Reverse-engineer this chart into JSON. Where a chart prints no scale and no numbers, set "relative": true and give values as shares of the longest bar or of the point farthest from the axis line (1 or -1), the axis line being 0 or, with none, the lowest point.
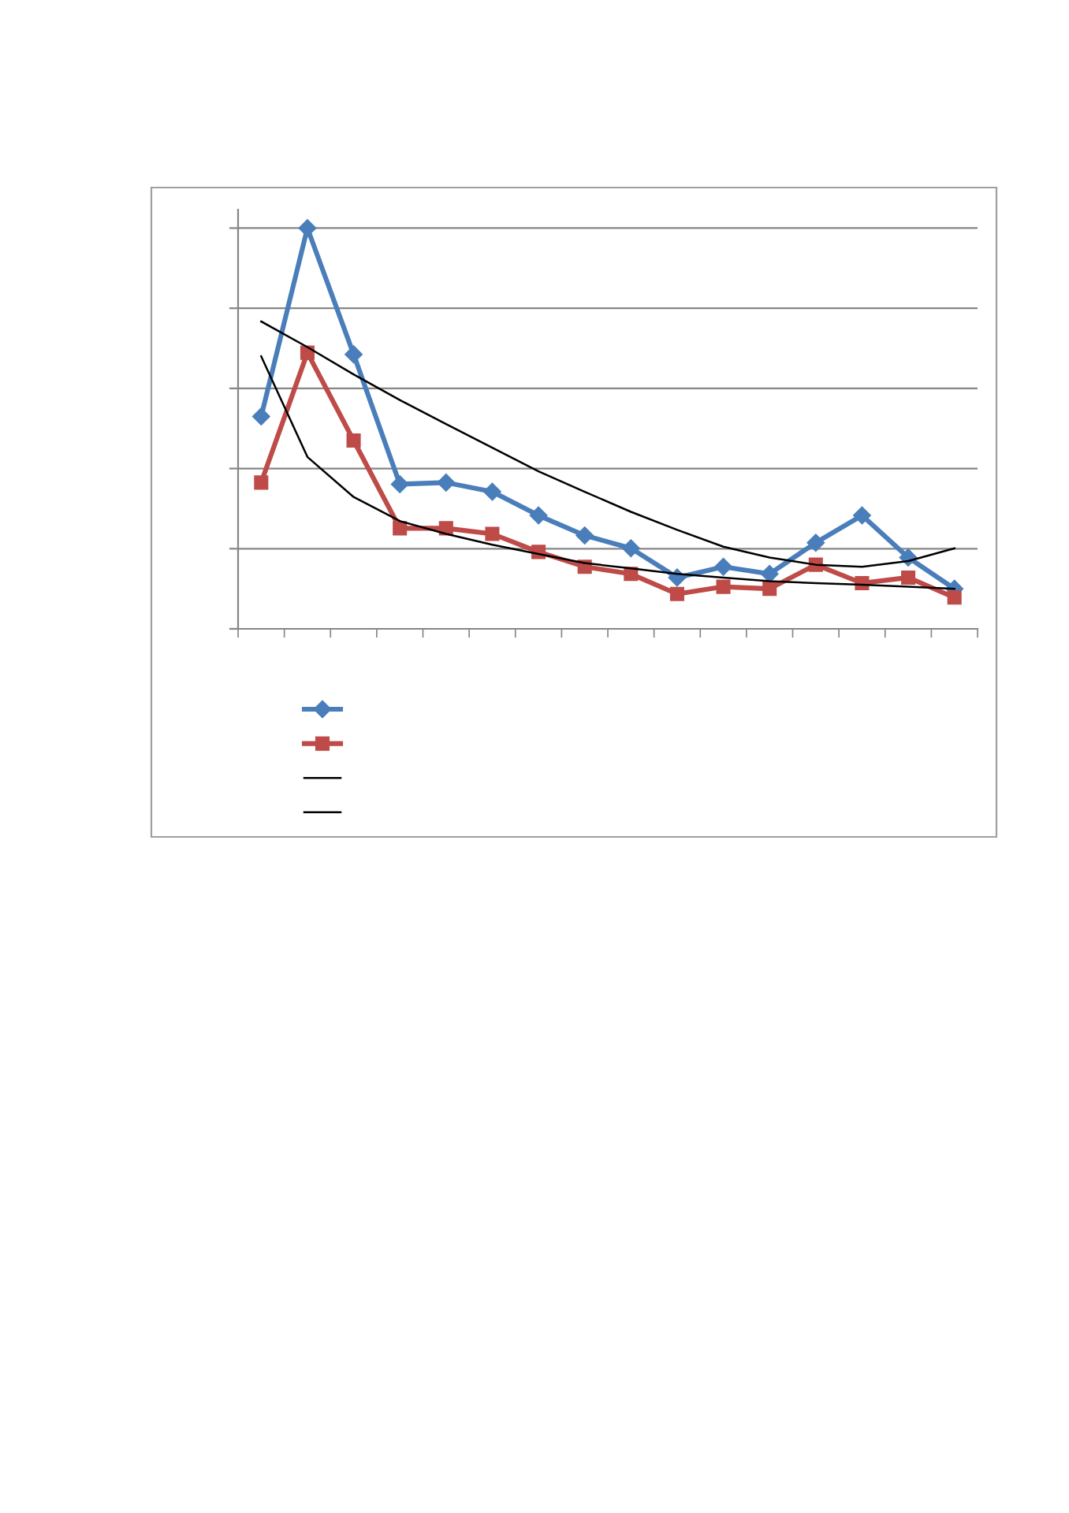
{
  "chart_data": {
    "type": "line",
    "relative": true,
    "categories": [
      null,
      null,
      null,
      null,
      null,
      null,
      null,
      null,
      null,
      null,
      null,
      null,
      null,
      null,
      null,
      null
    ],
    "grid": "y",
    "series": [
      {
        "color": "#4a7ebb",
        "marker": "diamond",
        "values": [
          0.53,
          1.0,
          0.685,
          0.361,
          0.365,
          0.342,
          0.283,
          0.233,
          0.201,
          0.128,
          0.155,
          0.137,
          0.215,
          0.283,
          0.178,
          0.1
        ]
      },
      {
        "color": "#be4b48",
        "marker": "square",
        "values": [
          0.365,
          0.689,
          0.47,
          0.251,
          0.251,
          0.237,
          0.192,
          0.155,
          0.137,
          0.087,
          0.105,
          0.1,
          0.16,
          0.114,
          0.128,
          0.078
        ]
      },
      {
        "color": "#000000",
        "marker": "none",
        "values": [
          0.767,
          0.703,
          0.635,
          0.571,
          0.511,
          0.452,
          0.393,
          0.342,
          0.292,
          0.247,
          0.205,
          0.178,
          0.16,
          0.155,
          0.169,
          0.201
        ]
      },
      {
        "color": "#000000",
        "marker": "none",
        "values": [
          0.68,
          0.429,
          0.329,
          0.269,
          0.237,
          0.21,
          0.187,
          0.164,
          0.151,
          0.137,
          0.128,
          0.119,
          0.114,
          0.11,
          0.105,
          0.1
        ]
      }
    ]
  }
}
